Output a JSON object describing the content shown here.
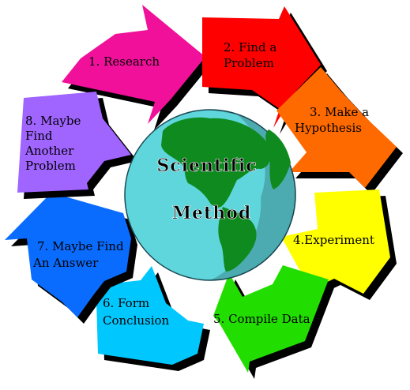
{
  "diagram": {
    "title_line1": "Scientific",
    "title_line2": "Method",
    "globe": {
      "ocean_color": "#5fd6dc",
      "land_color": "#0f8a1f",
      "icon": "globe-icon"
    },
    "steps": [
      {
        "label_lines": [
          "1. Research"
        ],
        "color": "#f0109a"
      },
      {
        "label_lines": [
          "2. Find a",
          "Problem"
        ],
        "color": "#ff0000"
      },
      {
        "label_lines": [
          "3. Make a",
          "Hypothesis"
        ],
        "color": "#ff6a00"
      },
      {
        "label_lines": [
          "4.Experiment"
        ],
        "color": "#ffff00"
      },
      {
        "label_lines": [
          "5. Compile Data"
        ],
        "color": "#22dd00"
      },
      {
        "label_lines": [
          "6. Form",
          "Conclusion"
        ],
        "color": "#00c8ff"
      },
      {
        "label_lines": [
          "7. Maybe Find",
          "An Answer"
        ],
        "color": "#0a6cff"
      },
      {
        "label_lines": [
          "8. Maybe",
          "Find",
          "Another",
          "Problem"
        ],
        "color": "#a064ff"
      }
    ]
  }
}
